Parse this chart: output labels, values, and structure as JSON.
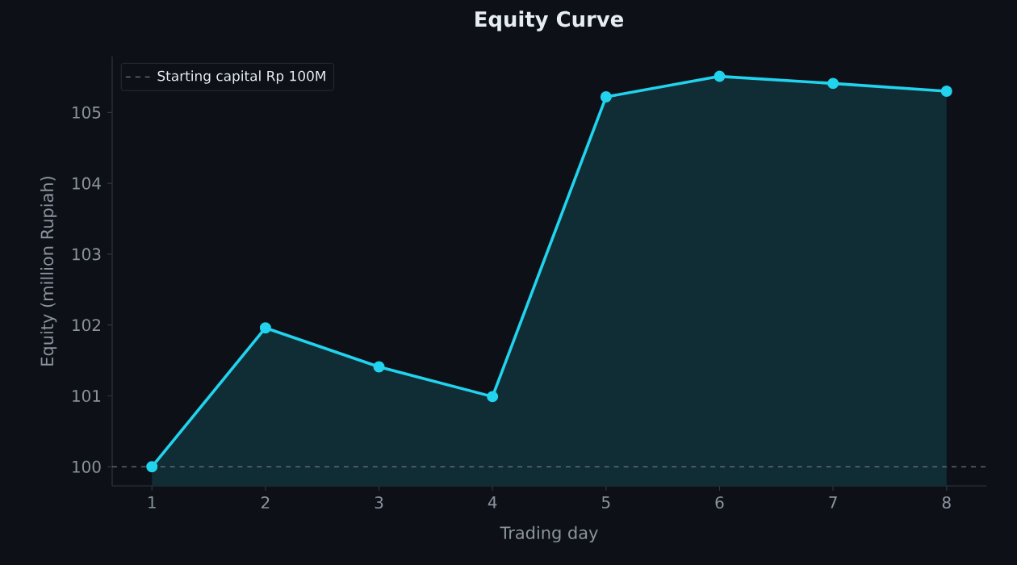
{
  "chart_data": {
    "type": "area",
    "title": "Equity Curve",
    "xlabel": "Trading day",
    "ylabel": "Equity (million Rupiah)",
    "x": [
      1,
      2,
      3,
      4,
      5,
      6,
      7,
      8
    ],
    "series": [
      {
        "color": "#22d3ee",
        "values": [
          100,
          101.96,
          101.41,
          100.99,
          105.22,
          105.51,
          105.41,
          105.3
        ]
      }
    ],
    "xlim": [
      0.65,
      8.35
    ],
    "ylim": [
      99.73,
      105.79
    ],
    "xticks": [
      1,
      2,
      3,
      4,
      5,
      6,
      7,
      8
    ],
    "yticks": [
      100,
      101,
      102,
      103,
      104,
      105
    ],
    "ref_lines": [
      {
        "axis": "y",
        "value": 100,
        "label": "Starting capital Rp 100M",
        "color": "#6e7681",
        "line_style": "dashed"
      }
    ],
    "legend": "top left",
    "marker": "circle",
    "grid": false
  }
}
